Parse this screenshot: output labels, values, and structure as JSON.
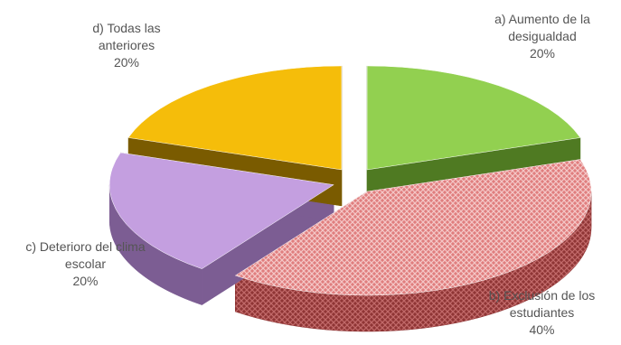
{
  "chart_data": {
    "type": "pie",
    "style": "3d-exploded",
    "slices": [
      {
        "label_line1": "a) Aumento de la",
        "label_line2": "desigualdad",
        "pct_label": "20%",
        "value": 20,
        "top_color": "#92d050",
        "side_color": "#4f7a22",
        "pattern": "none"
      },
      {
        "label_line1": "b) Exclusión de los",
        "label_line2": "estudiantes",
        "pct_label": "40%",
        "value": 40,
        "top_color": "#e58a8a",
        "side_color": "#8a2e2e",
        "pattern": "crosshatch"
      },
      {
        "label_line1": "c) Deterioro del clima",
        "label_line2": "escolar",
        "pct_label": "20%",
        "value": 20,
        "top_color": "#c49fe0",
        "side_color": "#7c5d93",
        "pattern": "none"
      },
      {
        "label_line1": "d) Todas las",
        "label_line2": "anteriores",
        "pct_label": "20%",
        "value": 20,
        "top_color": "#f5bd0a",
        "side_color": "#7a5b00",
        "pattern": "none"
      }
    ],
    "legend": "none"
  }
}
